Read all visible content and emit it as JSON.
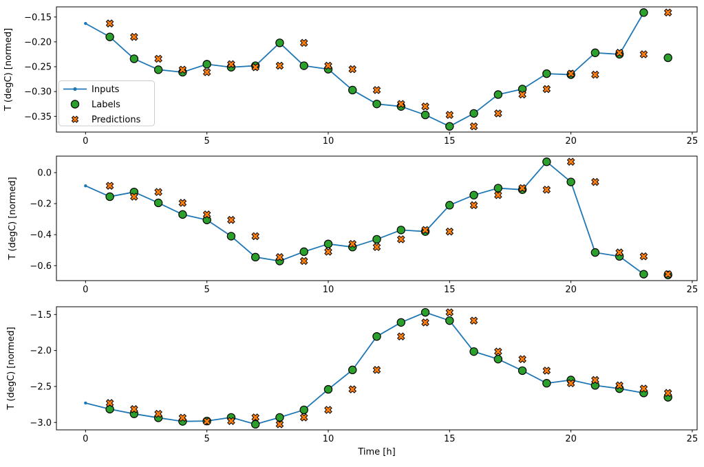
{
  "figure": {
    "background": "#ffffff"
  },
  "chart_data": {
    "type": "line",
    "title": "",
    "xlabel": "Time [h]",
    "ylabel": "T (degC) [normed]",
    "x": {
      "ticks": [
        0,
        5,
        10,
        15,
        20,
        25
      ],
      "tick_labels": [
        "0",
        "5",
        "10",
        "15",
        "20",
        "25"
      ],
      "lim": [
        -1.2,
        25.2
      ]
    },
    "grid": false,
    "legend": {
      "position": "lower-left-inside-first-subplot",
      "items": [
        {
          "name": "inputs",
          "label": "Inputs",
          "marker": "line-with-dot"
        },
        {
          "name": "labels",
          "label": "Labels",
          "marker": "circle"
        },
        {
          "name": "predictions",
          "label": "Predictions",
          "marker": "x-filled"
        }
      ]
    },
    "colors": {
      "inputs": "#1f77b4",
      "labels": "#2ca02c",
      "predictions": "#ff7f0e",
      "marker_edge": "#000000",
      "legend_border": "#cccccc",
      "spine": "#000000"
    },
    "subplots": [
      {
        "ylabel": "T (degC) [normed]",
        "y_ticks": [
          -0.15,
          -0.2,
          -0.25,
          -0.3,
          -0.35
        ],
        "y_tick_labels": [
          "−0.15",
          "−0.20",
          "−0.25",
          "−0.30",
          "−0.35"
        ],
        "ylim": [
          -0.3815,
          -0.1296
        ],
        "series": {
          "inputs": {
            "x": [
              0,
              1,
              2,
              3,
              4,
              5,
              6,
              7,
              8,
              9,
              10,
              11,
              12,
              13,
              14,
              15,
              16,
              17,
              18,
              19,
              20,
              21,
              22,
              23
            ],
            "y": [
              -0.163,
              -0.19,
              -0.234,
              -0.256,
              -0.261,
              -0.245,
              -0.251,
              -0.248,
              -0.202,
              -0.248,
              -0.255,
              -0.297,
              -0.325,
              -0.33,
              -0.347,
              -0.37,
              -0.344,
              -0.306,
              -0.295,
              -0.264,
              -0.266,
              -0.222,
              -0.225,
              -0.141
            ]
          },
          "labels": {
            "x": [
              1,
              2,
              3,
              4,
              5,
              6,
              7,
              8,
              9,
              10,
              11,
              12,
              13,
              14,
              15,
              16,
              17,
              18,
              19,
              20,
              21,
              22,
              23,
              24
            ],
            "y": [
              -0.19,
              -0.234,
              -0.256,
              -0.261,
              -0.245,
              -0.251,
              -0.248,
              -0.202,
              -0.248,
              -0.255,
              -0.297,
              -0.325,
              -0.33,
              -0.347,
              -0.37,
              -0.344,
              -0.306,
              -0.295,
              -0.264,
              -0.266,
              -0.222,
              -0.225,
              -0.141,
              -0.232
            ]
          },
          "predictions": {
            "x": [
              1,
              2,
              3,
              4,
              5,
              6,
              7,
              8,
              9,
              10,
              11,
              12,
              13,
              14,
              15,
              16,
              17,
              18,
              19,
              20,
              21,
              22,
              23,
              24
            ],
            "y": [
              -0.163,
              -0.19,
              -0.234,
              -0.256,
              -0.261,
              -0.245,
              -0.251,
              -0.248,
              -0.202,
              -0.248,
              -0.255,
              -0.297,
              -0.325,
              -0.33,
              -0.347,
              -0.37,
              -0.344,
              -0.306,
              -0.295,
              -0.264,
              -0.266,
              -0.222,
              -0.225,
              -0.141
            ]
          }
        }
      },
      {
        "ylabel": "T (degC) [normed]",
        "y_ticks": [
          0.0,
          -0.2,
          -0.4,
          -0.6
        ],
        "y_tick_labels": [
          "0.0",
          "−0.2",
          "−0.4",
          "−0.6"
        ],
        "ylim": [
          -0.6965,
          0.1065
        ],
        "series": {
          "inputs": {
            "x": [
              0,
              1,
              2,
              3,
              4,
              5,
              6,
              7,
              8,
              9,
              10,
              11,
              12,
              13,
              14,
              15,
              16,
              17,
              18,
              19,
              20,
              21,
              22,
              23
            ],
            "y": [
              -0.085,
              -0.155,
              -0.125,
              -0.195,
              -0.27,
              -0.305,
              -0.41,
              -0.545,
              -0.57,
              -0.51,
              -0.46,
              -0.48,
              -0.43,
              -0.37,
              -0.38,
              -0.21,
              -0.145,
              -0.1,
              -0.11,
              0.07,
              -0.06,
              -0.515,
              -0.54,
              -0.655
            ]
          },
          "labels": {
            "x": [
              1,
              2,
              3,
              4,
              5,
              6,
              7,
              8,
              9,
              10,
              11,
              12,
              13,
              14,
              15,
              16,
              17,
              18,
              19,
              20,
              21,
              22,
              23,
              24
            ],
            "y": [
              -0.155,
              -0.125,
              -0.195,
              -0.27,
              -0.305,
              -0.41,
              -0.545,
              -0.57,
              -0.51,
              -0.46,
              -0.48,
              -0.43,
              -0.37,
              -0.38,
              -0.21,
              -0.145,
              -0.1,
              -0.11,
              0.07,
              -0.06,
              -0.515,
              -0.54,
              -0.655,
              -0.66
            ]
          },
          "predictions": {
            "x": [
              1,
              2,
              3,
              4,
              5,
              6,
              7,
              8,
              9,
              10,
              11,
              12,
              13,
              14,
              15,
              16,
              17,
              18,
              19,
              20,
              21,
              22,
              23,
              24
            ],
            "y": [
              -0.085,
              -0.155,
              -0.125,
              -0.195,
              -0.27,
              -0.305,
              -0.41,
              -0.545,
              -0.57,
              -0.51,
              -0.46,
              -0.48,
              -0.43,
              -0.37,
              -0.38,
              -0.21,
              -0.145,
              -0.1,
              -0.11,
              0.07,
              -0.06,
              -0.515,
              -0.54,
              -0.655
            ]
          }
        }
      },
      {
        "ylabel": "T (degC) [normed]",
        "y_ticks": [
          -1.5,
          -2.0,
          -2.5,
          -3.0
        ],
        "y_tick_labels": [
          "−1.5",
          "−2.0",
          "−2.5",
          "−3.0"
        ],
        "ylim": [
          -3.1028,
          -1.3922
        ],
        "series": {
          "inputs": {
            "x": [
              0,
              1,
              2,
              3,
              4,
              5,
              6,
              7,
              8,
              9,
              10,
              11,
              12,
              13,
              14,
              15,
              16,
              17,
              18,
              19,
              20,
              21,
              22,
              23
            ],
            "y": [
              -2.73,
              -2.815,
              -2.88,
              -2.935,
              -2.985,
              -2.98,
              -2.93,
              -3.025,
              -2.93,
              -2.825,
              -2.54,
              -2.27,
              -1.805,
              -1.61,
              -1.47,
              -1.585,
              -2.015,
              -2.12,
              -2.28,
              -2.455,
              -2.41,
              -2.485,
              -2.53,
              -2.59
            ]
          },
          "labels": {
            "x": [
              1,
              2,
              3,
              4,
              5,
              6,
              7,
              8,
              9,
              10,
              11,
              12,
              13,
              14,
              15,
              16,
              17,
              18,
              19,
              20,
              21,
              22,
              23,
              24
            ],
            "y": [
              -2.815,
              -2.88,
              -2.935,
              -2.985,
              -2.98,
              -2.93,
              -3.025,
              -2.93,
              -2.825,
              -2.54,
              -2.27,
              -1.805,
              -1.61,
              -1.47,
              -1.585,
              -2.015,
              -2.12,
              -2.28,
              -2.455,
              -2.41,
              -2.485,
              -2.53,
              -2.59,
              -2.65
            ]
          },
          "predictions": {
            "x": [
              1,
              2,
              3,
              4,
              5,
              6,
              7,
              8,
              9,
              10,
              11,
              12,
              13,
              14,
              15,
              16,
              17,
              18,
              19,
              20,
              21,
              22,
              23,
              24
            ],
            "y": [
              -2.73,
              -2.815,
              -2.88,
              -2.935,
              -2.985,
              -2.98,
              -2.93,
              -3.025,
              -2.93,
              -2.825,
              -2.54,
              -2.27,
              -1.805,
              -1.61,
              -1.47,
              -1.585,
              -2.015,
              -2.12,
              -2.28,
              -2.455,
              -2.41,
              -2.485,
              -2.53,
              -2.59
            ]
          }
        }
      }
    ]
  }
}
